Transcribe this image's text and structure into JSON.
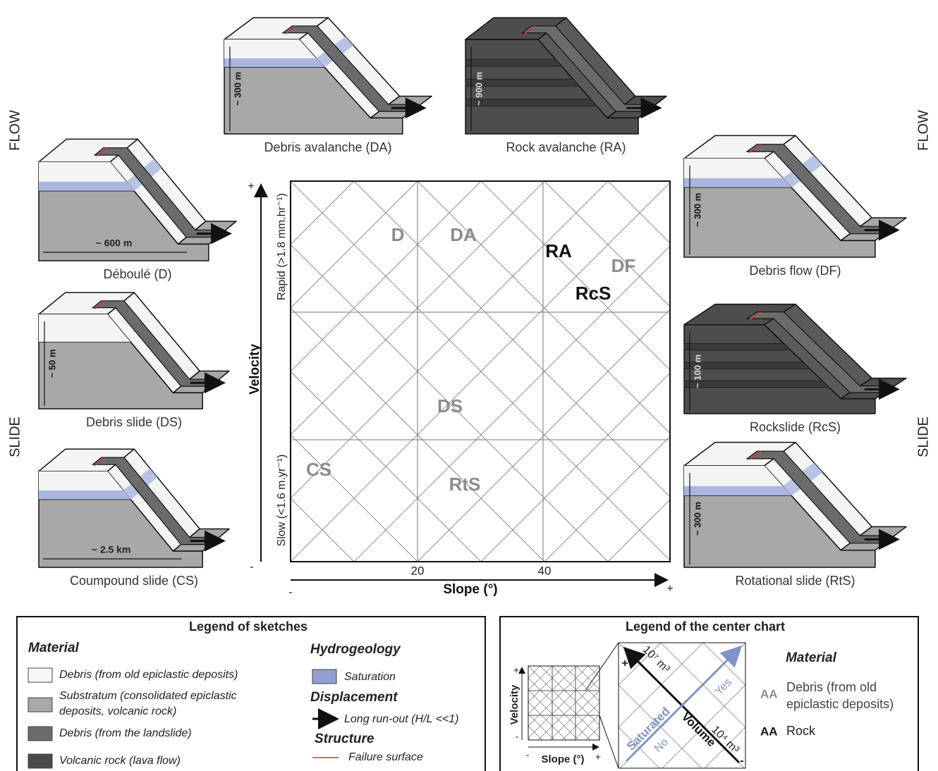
{
  "side_labels": {
    "left_flow": "FLOW",
    "left_slide": "SLIDE",
    "right_flow": "FLOW",
    "right_slide": "SLIDE"
  },
  "sketches": [
    {
      "caption": "Debris avalanche (DA)",
      "scale": "~ 300 m"
    },
    {
      "caption": "Rock avalanche (RA)",
      "scale": "~ 900 m"
    },
    {
      "caption": "Déboulé (D)",
      "scale": "~ 600 m"
    },
    {
      "caption": "Debris slide (DS)",
      "scale": "~ 50 m"
    },
    {
      "caption": "Coumpound slide (CS)",
      "scale": "~ 2.5 km"
    },
    {
      "caption": "Debris flow (DF)",
      "scale": "~ 300 m"
    },
    {
      "caption": "Rockslide (RcS)",
      "scale": "~ 100 m"
    },
    {
      "caption": "Rotational slide (RtS)",
      "scale": "~ 300 m"
    }
  ],
  "center_chart": {
    "y_axis_title": "Velocity",
    "y_plus": "+",
    "y_minus": "-",
    "rapid_label": "Rapid (>1.8 mm.hr⁻¹)",
    "slow_label": "Slow (<1.6 m.yr⁻¹)",
    "x_axis_title": "Slope (°)",
    "x_minus": "-",
    "x_plus": "+",
    "xticks": [
      20,
      40
    ],
    "labels": [
      "D",
      "DA",
      "RA",
      "DF",
      "RcS",
      "DS",
      "CS",
      "RtS"
    ]
  },
  "legend_sketches": {
    "title": "Legend of sketches",
    "material_heading": "Material",
    "material_items": [
      [
        "Debris (from old epiclastic deposits)"
      ],
      [
        "Substratum (consolidated epiclastic",
        "deposits, volcanic rock)"
      ],
      [
        "Debris (from the landslide)"
      ],
      [
        "Volcanic rock (lava flow)"
      ]
    ],
    "hydrogeology_heading": "Hydrogeology",
    "saturation": "Saturation",
    "displacement_heading": "Displacement",
    "long_runout": "Long run-out (H/L <<1)",
    "structure_heading": "Structure",
    "failure_surface": "Failure surface"
  },
  "legend_chart": {
    "title": "Legend of the center chart",
    "inset": {
      "velocity": "Velocity",
      "slope": "Slope (°)",
      "v_plus": "+",
      "v_minus": "-",
      "s_minus": "-",
      "s_plus": "+"
    },
    "zoom": {
      "volume": "Volume",
      "volume_high": "10⁷ m³",
      "volume_low": "10⁴ m³",
      "plus": "+",
      "minus": "-",
      "saturated": "Saturated",
      "yes": "Yes",
      "no": "No"
    },
    "material_heading": "Material",
    "debris_sample": "AA",
    "debris_lines": [
      "Debris (from old",
      "epiclastic deposits)"
    ],
    "rock_sample": "AA",
    "rock": "Rock"
  }
}
